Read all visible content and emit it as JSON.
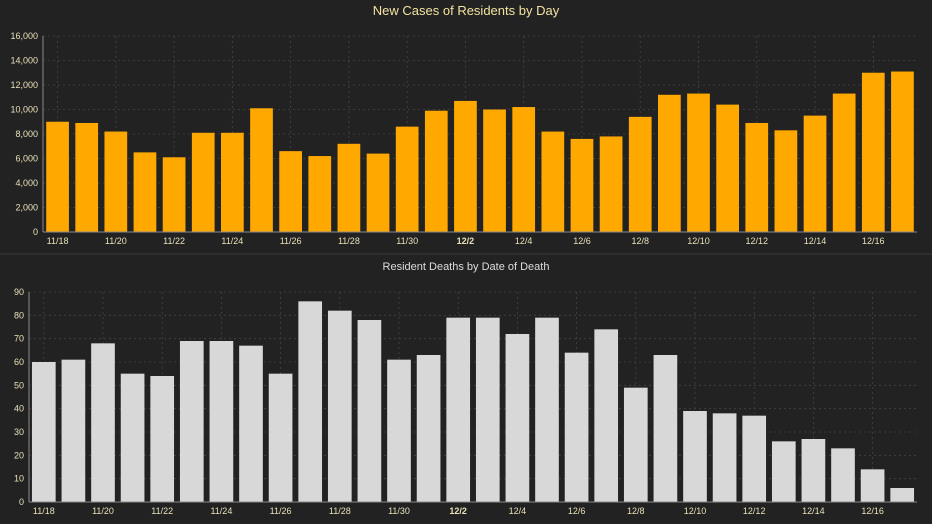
{
  "chart_data": [
    {
      "type": "bar",
      "title": "New Cases of Residents by Day",
      "xlabel": "",
      "ylabel": "",
      "ylim": [
        0,
        16000
      ],
      "yticks": [
        "0",
        "2,000",
        "4,000",
        "6,000",
        "8,000",
        "10,000",
        "12,000",
        "14,000",
        "16,000"
      ],
      "categories": [
        "11/18",
        "11/19",
        "11/20",
        "11/21",
        "11/22",
        "11/23",
        "11/24",
        "11/25",
        "11/26",
        "11/27",
        "11/28",
        "11/29",
        "11/30",
        "12/1",
        "12/2",
        "12/3",
        "12/4",
        "12/5",
        "12/6",
        "12/7",
        "12/8",
        "12/9",
        "12/10",
        "12/11",
        "12/12",
        "12/13",
        "12/14",
        "12/15",
        "12/16",
        "12/17"
      ],
      "tick_labels": [
        "11/18",
        "11/20",
        "11/22",
        "11/24",
        "11/26",
        "11/28",
        "11/30",
        "12/2",
        "12/4",
        "12/6",
        "12/8",
        "12/10",
        "12/12",
        "12/14",
        "12/16"
      ],
      "bold_tick": "12/2",
      "values": [
        9000,
        8900,
        8200,
        6500,
        6100,
        8100,
        8100,
        10100,
        6600,
        6200,
        7200,
        6400,
        8600,
        9900,
        10700,
        10000,
        10200,
        8200,
        7600,
        7800,
        9400,
        11200,
        11300,
        10400,
        8900,
        8300,
        9500,
        11300,
        13000,
        13100
      ],
      "grid": true,
      "color": "#ffa800"
    },
    {
      "type": "bar",
      "title": "Resident Deaths by Date of Death",
      "xlabel": "",
      "ylabel": "",
      "ylim": [
        0,
        90
      ],
      "yticks": [
        "0",
        "10",
        "20",
        "30",
        "40",
        "50",
        "60",
        "70",
        "80",
        "90"
      ],
      "categories": [
        "11/18",
        "11/19",
        "11/20",
        "11/21",
        "11/22",
        "11/23",
        "11/24",
        "11/25",
        "11/26",
        "11/27",
        "11/28",
        "11/29",
        "11/30",
        "12/1",
        "12/2",
        "12/3",
        "12/4",
        "12/5",
        "12/6",
        "12/7",
        "12/8",
        "12/9",
        "12/10",
        "12/11",
        "12/12",
        "12/13",
        "12/14",
        "12/15",
        "12/16",
        "12/17"
      ],
      "tick_labels": [
        "11/18",
        "11/20",
        "11/22",
        "11/24",
        "11/26",
        "11/28",
        "11/30",
        "12/2",
        "12/4",
        "12/6",
        "12/8",
        "12/10",
        "12/12",
        "12/14",
        "12/16"
      ],
      "bold_tick": "12/2",
      "values": [
        60,
        61,
        68,
        55,
        54,
        69,
        69,
        67,
        55,
        86,
        82,
        78,
        61,
        63,
        79,
        79,
        72,
        79,
        64,
        74,
        49,
        63,
        39,
        38,
        37,
        26,
        27,
        23,
        14,
        6
      ],
      "grid": true,
      "color": "#d8d8d8"
    }
  ]
}
